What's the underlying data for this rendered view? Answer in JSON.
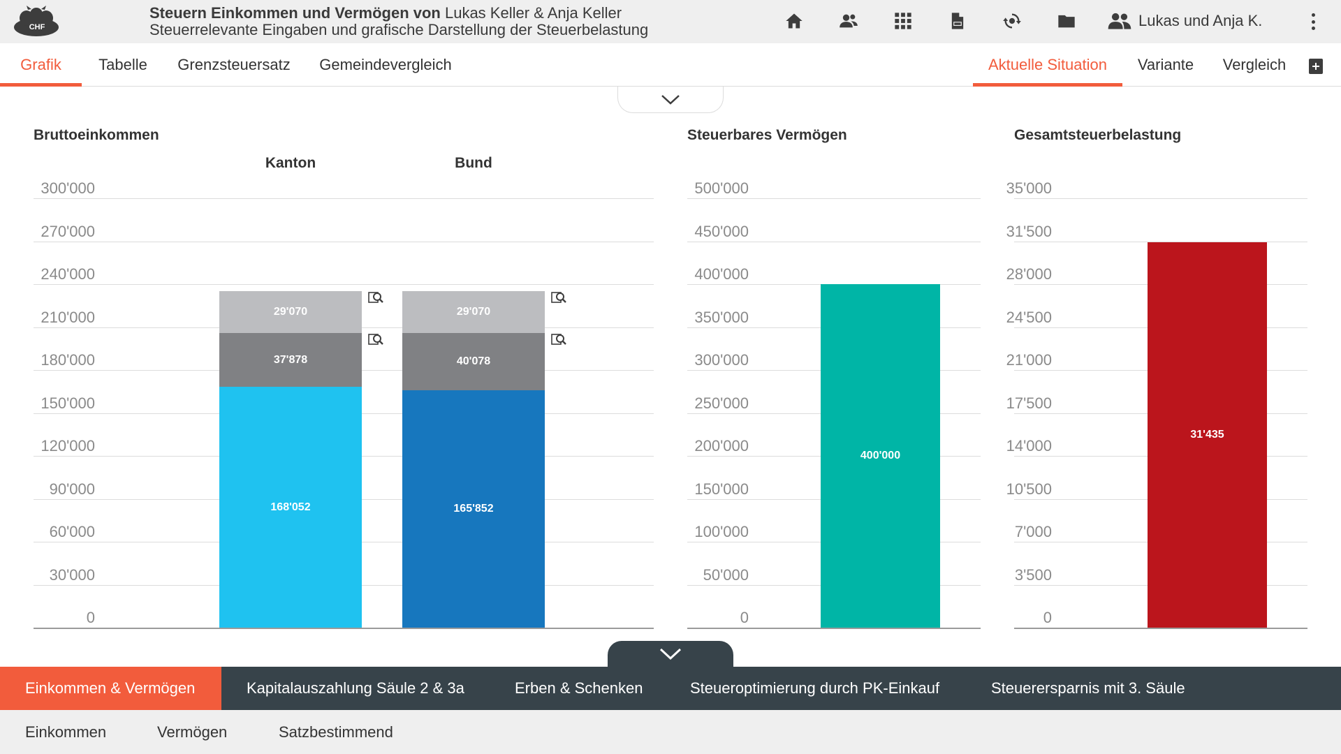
{
  "header": {
    "logo_text": "CHF",
    "title_bold": "Steuern Einkommen und Vermögen von",
    "title_names": " Lukas Keller & Anja Keller",
    "subtitle": "Steuerrelevante Eingaben und grafische Darstellung der Steuerbelastung",
    "icons": [
      "home-icon",
      "clients-icon",
      "apps-grid-icon",
      "pdf-document-icon",
      "currency-sync-icon",
      "folder-icon"
    ],
    "user_label": "Lukas und Anja K."
  },
  "tabs_left": [
    "Grafik",
    "Tabelle",
    "Grenzsteuersatz",
    "Gemeindevergleich"
  ],
  "tabs_right": [
    "Aktuelle Situation",
    "Variante",
    "Vergleich"
  ],
  "active_left": "Grafik",
  "active_right": "Aktuelle Situation",
  "colors": {
    "accent": "#f25c3c",
    "kanton_base": "#1fc2f0",
    "bund_base": "#1777be",
    "mid_segment": "#808184",
    "top_segment": "#bcbdc0",
    "vermoegen": "#00b5a6",
    "steuer": "#bb151c",
    "dark_bar": "#37434a"
  },
  "income": {
    "title": "Bruttoeinkommen",
    "kanton_label": "Kanton",
    "bund_label": "Bund",
    "ticks": [
      "300'000",
      "270'000",
      "240'000",
      "210'000",
      "180'000",
      "150'000",
      "120'000",
      "90'000",
      "60'000",
      "30'000",
      "0"
    ],
    "kanton_segments": [
      {
        "label": "168'052",
        "value": 168052,
        "color": "#1fc2f0"
      },
      {
        "label": "37'878",
        "value": 37878,
        "color": "#808184"
      },
      {
        "label": "29'070",
        "value": 29070,
        "color": "#bcbdc0"
      }
    ],
    "bund_segments": [
      {
        "label": "165'852",
        "value": 165852,
        "color": "#1777be"
      },
      {
        "label": "40'078",
        "value": 40078,
        "color": "#808184"
      },
      {
        "label": "29'070",
        "value": 29070,
        "color": "#bcbdc0"
      }
    ]
  },
  "vermoegen": {
    "title": "Steuerbares Vermögen",
    "ticks": [
      "500'000",
      "450'000",
      "400'000",
      "350'000",
      "300'000",
      "250'000",
      "200'000",
      "150'000",
      "100'000",
      "50'000",
      "0"
    ],
    "label": "400'000",
    "value": 400000
  },
  "steuer": {
    "title": "Gesamtsteuerbelastung",
    "ticks": [
      "35'000",
      "31'500",
      "28'000",
      "24'500",
      "21'000",
      "17'500",
      "14'000",
      "10'500",
      "7'000",
      "3'500",
      "0"
    ],
    "label": "31'435",
    "value": 31435
  },
  "chart_data": [
    {
      "type": "bar",
      "title": "Bruttoeinkommen",
      "categories": [
        "Kanton",
        "Bund"
      ],
      "stacked": true,
      "series": [
        {
          "values": [
            168052,
            165852
          ]
        },
        {
          "values": [
            37878,
            40078
          ]
        },
        {
          "values": [
            29070,
            29070
          ]
        }
      ],
      "ylim": [
        0,
        300000
      ],
      "grid": true
    },
    {
      "type": "bar",
      "title": "Steuerbares Vermögen",
      "categories": [
        ""
      ],
      "values": [
        400000
      ],
      "ylim": [
        0,
        500000
      ],
      "grid": true
    },
    {
      "type": "bar",
      "title": "Gesamtsteuerbelastung",
      "categories": [
        ""
      ],
      "values": [
        31435
      ],
      "ylim": [
        0,
        35000
      ],
      "grid": true
    }
  ],
  "categories_bar": [
    "Einkommen & Vermögen",
    "Kapitalauszahlung Säule 2 & 3a",
    "Erben & Schenken",
    "Steueroptimierung durch PK-Einkauf",
    "Steuerersparnis mit 3. Säule"
  ],
  "active_category": "Einkommen & Vermögen",
  "subcategories": [
    "Einkommen",
    "Vermögen",
    "Satzbestimmend"
  ]
}
